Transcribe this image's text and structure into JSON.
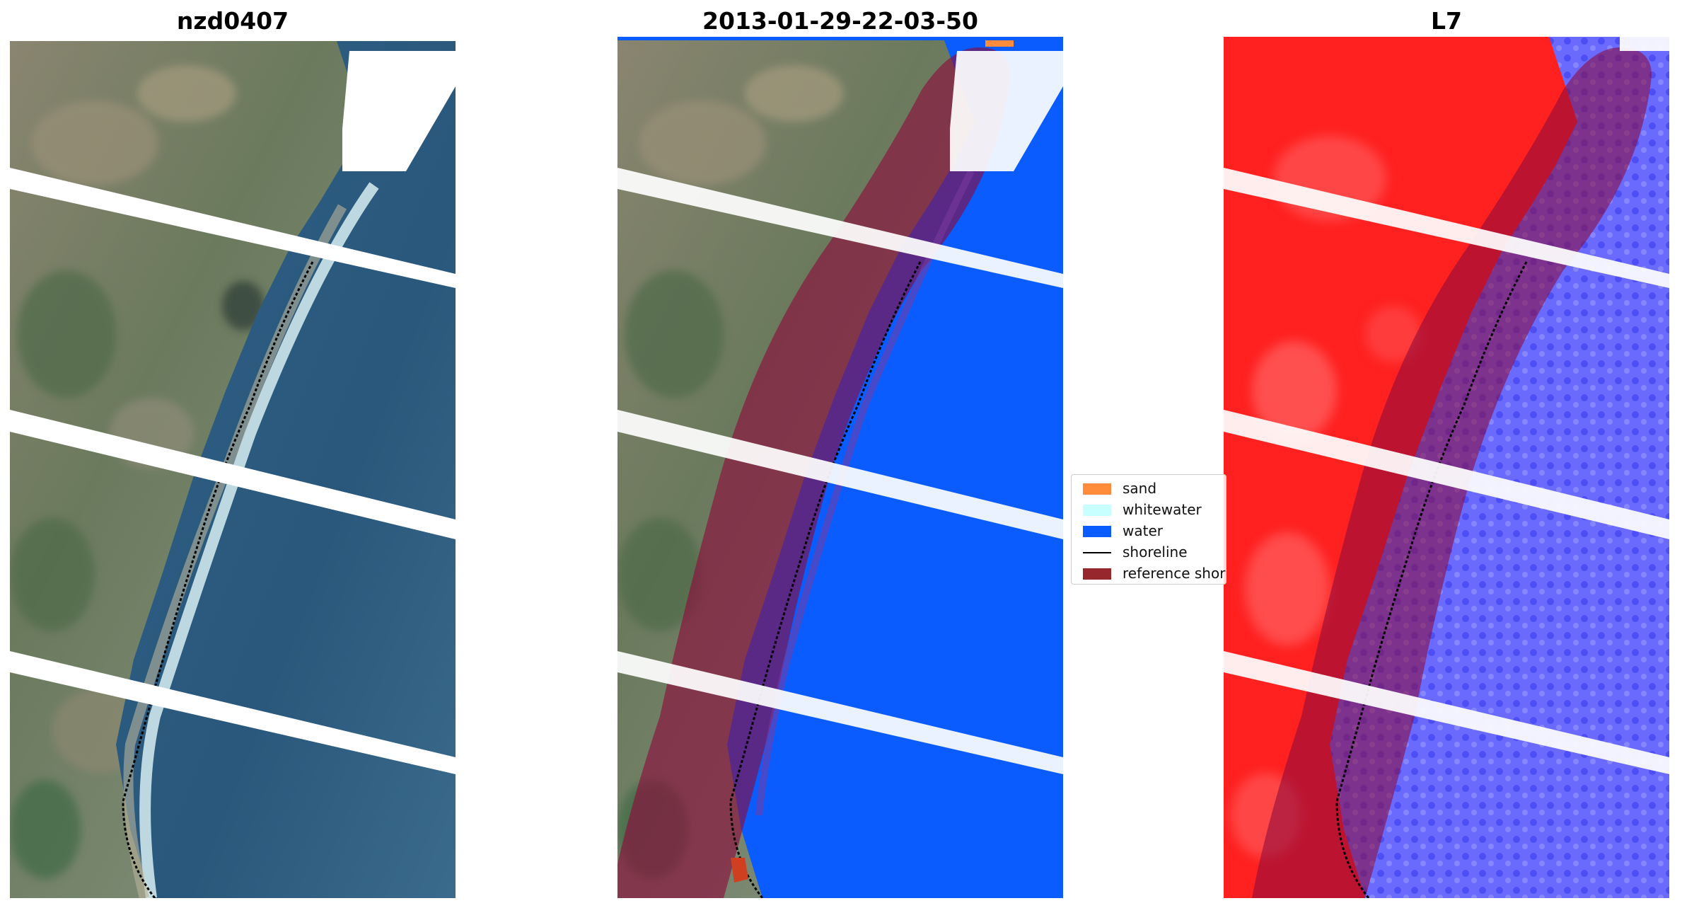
{
  "panels": [
    {
      "id": "rgb",
      "title": "nzd0407"
    },
    {
      "id": "classified",
      "title": "2013-01-29-22-03-50"
    },
    {
      "id": "index",
      "title": "L7"
    }
  ],
  "legend": {
    "items": [
      {
        "label": "sand",
        "kind": "patch",
        "color": "#ff8c3c"
      },
      {
        "label": "whitewater",
        "kind": "patch",
        "color": "#c8ffff"
      },
      {
        "label": "water",
        "kind": "patch",
        "color": "#0a5cff"
      },
      {
        "label": "shoreline",
        "kind": "line",
        "color": "#000000"
      },
      {
        "label": "reference shor",
        "kind": "patch",
        "color": "#96282d"
      }
    ]
  },
  "colors": {
    "land_rgb": "#6f7d66",
    "sea_rgb": "#2d5a7e",
    "surf": "#d8eef2",
    "gap": "#ffffff",
    "water_class": "#0a5cff",
    "land_index": "#ff2020",
    "water_index": "#5a5aff",
    "reference_buffer": "#8c0a3c",
    "shoreline": "#000000"
  }
}
